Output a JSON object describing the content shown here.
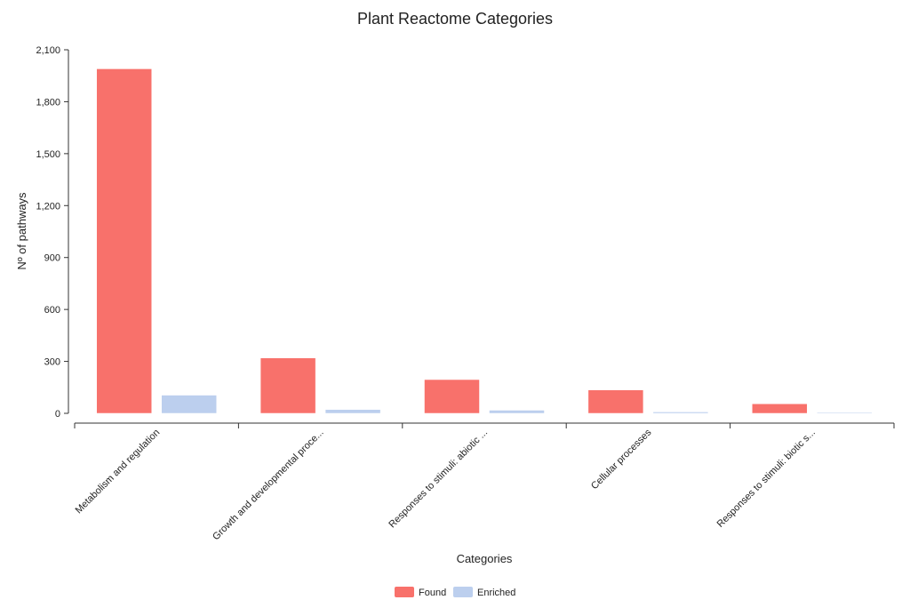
{
  "chart_data": {
    "type": "bar",
    "title": "Plant Reactome Categories",
    "xlabel": "Categories",
    "ylabel": "Nº of pathways",
    "ylim": [
      0,
      2100
    ],
    "yticks": [
      "0",
      "300",
      "600",
      "900",
      "1,200",
      "1,500",
      "1,800",
      "2,100"
    ],
    "ytick_values": [
      0,
      300,
      600,
      900,
      1200,
      1500,
      1800,
      2100
    ],
    "categories": [
      "Metabolism and regulation",
      "Growth and developmental proce...",
      "Responses to stimuli: abiotic ...",
      "Cellular processes",
      "Responses to stimuli: biotic s..."
    ],
    "series": [
      {
        "name": "Found",
        "color": "#f8716b",
        "values": [
          1990,
          320,
          195,
          135,
          55
        ]
      },
      {
        "name": "Enriched",
        "color": "#bccfee",
        "values": [
          105,
          22,
          18,
          8,
          3
        ]
      }
    ],
    "grid": false,
    "legend_position": "bottom"
  }
}
